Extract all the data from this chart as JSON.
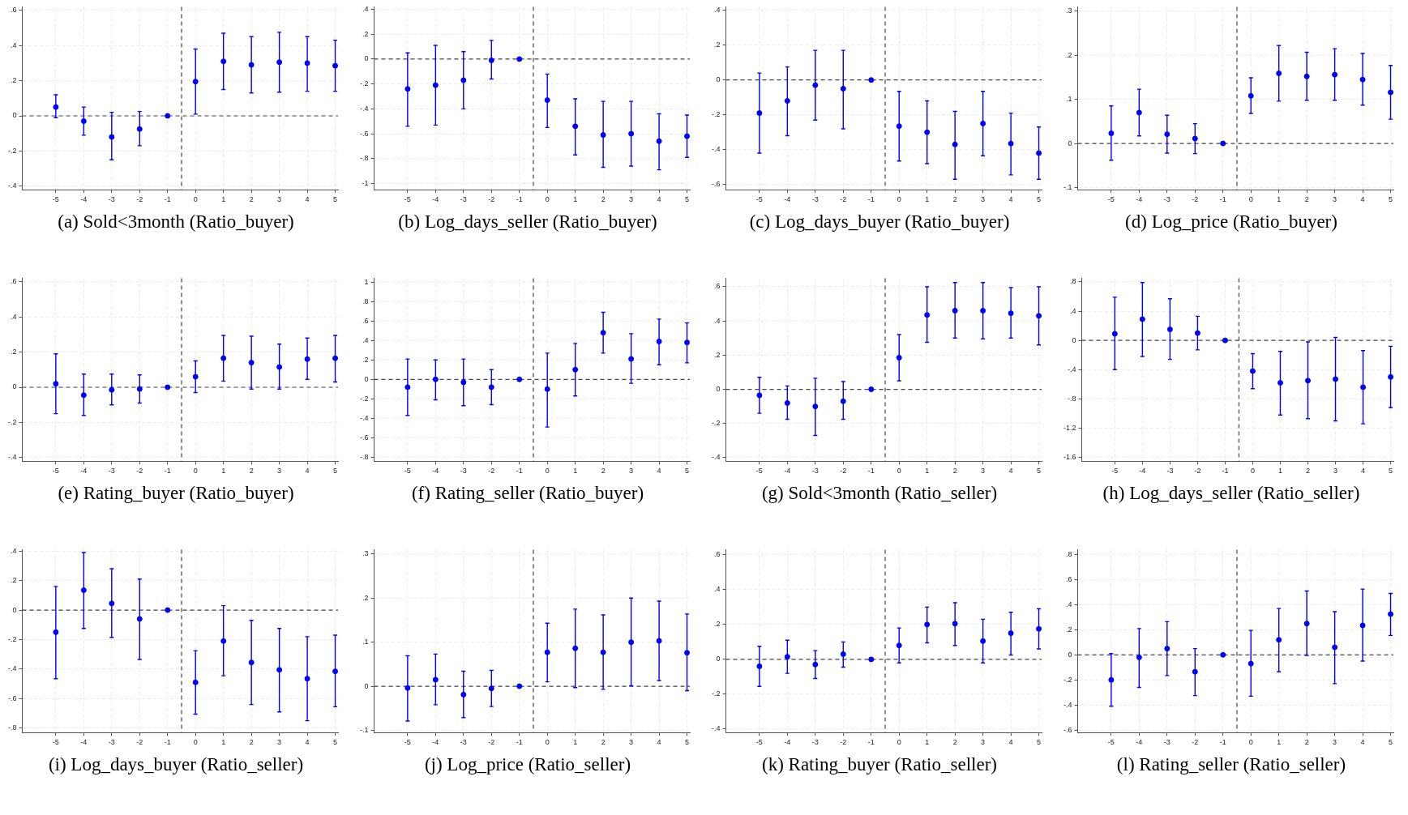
{
  "chart_data": [
    {
      "type": "scatter",
      "title": "(a) Sold<3month (Ratio_buyer)",
      "x": [
        -5,
        -4,
        -3,
        -2,
        -1,
        0,
        1,
        2,
        3,
        4,
        5
      ],
      "xlim": [
        -6.2,
        5.1
      ],
      "xticks": [
        -5,
        -4,
        -3,
        -2,
        -1,
        0,
        1,
        2,
        3,
        4,
        5
      ],
      "ylim": [
        -0.42,
        0.62
      ],
      "yticks": [
        {
          "value": -0.4,
          "label": "-.4"
        },
        {
          "value": -0.2,
          "label": "-.2"
        },
        0,
        {
          "value": 0.2,
          "label": ".2"
        },
        {
          "value": 0.4,
          "label": ".4"
        },
        {
          "value": 0.6,
          "label": ".6"
        }
      ],
      "grid": true,
      "marker": "circle",
      "series": [
        {
          "color": "#0000ff",
          "values": [
            0.05,
            -0.03,
            -0.12,
            -0.075,
            0,
            0.195,
            0.31,
            0.29,
            0.305,
            0.3,
            0.285
          ],
          "errors": [
            [
              -0.01,
              0.12
            ],
            [
              -0.11,
              0.05
            ],
            [
              -0.25,
              0.02
            ],
            [
              -0.17,
              0.025
            ],
            null,
            [
              0.01,
              0.38
            ],
            [
              0.15,
              0.47
            ],
            [
              0.13,
              0.45
            ],
            [
              0.135,
              0.475
            ],
            [
              0.14,
              0.45
            ],
            [
              0.14,
              0.43
            ]
          ]
        }
      ],
      "ref_lines": [
        {
          "axis": "y",
          "value": 0,
          "line_style": "dashed",
          "color": "#444444"
        },
        {
          "axis": "x",
          "value": -0.5,
          "line_style": "dashed",
          "color": "#444444"
        }
      ]
    },
    {
      "type": "scatter",
      "title": "(b) Log_days_seller (Ratio_buyer)",
      "x": [
        -5,
        -4,
        -3,
        -2,
        -1,
        0,
        1,
        2,
        3,
        4,
        5
      ],
      "xlim": [
        -6.2,
        5.1
      ],
      "xticks": [
        -5,
        -4,
        -3,
        -2,
        -1,
        0,
        1,
        2,
        3,
        4,
        5
      ],
      "ylim": [
        -1.05,
        0.42
      ],
      "yticks": [
        -1,
        {
          "value": -0.8,
          "label": "-.8"
        },
        {
          "value": -0.6,
          "label": "-.6"
        },
        {
          "value": -0.4,
          "label": "-.4"
        },
        {
          "value": -0.2,
          "label": "-.2"
        },
        0,
        {
          "value": 0.2,
          "label": ".2"
        },
        {
          "value": 0.4,
          "label": ".4"
        }
      ],
      "grid": true,
      "marker": "circle",
      "series": [
        {
          "color": "#0000ff",
          "values": [
            -0.24,
            -0.21,
            -0.17,
            -0.01,
            0,
            -0.33,
            -0.54,
            -0.61,
            -0.6,
            -0.66,
            -0.62
          ],
          "errors": [
            [
              -0.54,
              0.05
            ],
            [
              -0.53,
              0.11
            ],
            [
              -0.4,
              0.06
            ],
            [
              -0.16,
              0.15
            ],
            null,
            [
              -0.55,
              -0.12
            ],
            [
              -0.77,
              -0.32
            ],
            [
              -0.87,
              -0.34
            ],
            [
              -0.86,
              -0.34
            ],
            [
              -0.89,
              -0.44
            ],
            [
              -0.79,
              -0.45
            ]
          ]
        }
      ],
      "ref_lines": [
        {
          "axis": "y",
          "value": 0,
          "line_style": "dashed",
          "color": "#444444"
        },
        {
          "axis": "x",
          "value": -0.5,
          "line_style": "dashed",
          "color": "#444444"
        }
      ]
    },
    {
      "type": "scatter",
      "title": "(c) Log_days_buyer (Ratio_buyer)",
      "x": [
        -5,
        -4,
        -3,
        -2,
        -1,
        0,
        1,
        2,
        3,
        4,
        5
      ],
      "xlim": [
        -6.2,
        5.1
      ],
      "xticks": [
        -5,
        -4,
        -3,
        -2,
        -1,
        0,
        1,
        2,
        3,
        4,
        5
      ],
      "ylim": [
        -0.63,
        0.42
      ],
      "yticks": [
        {
          "value": -0.6,
          "label": "-.6"
        },
        {
          "value": -0.4,
          "label": "-.4"
        },
        {
          "value": -0.2,
          "label": "-.2"
        },
        0,
        {
          "value": 0.2,
          "label": ".2"
        },
        {
          "value": 0.4,
          "label": ".4"
        }
      ],
      "grid": true,
      "marker": "circle",
      "series": [
        {
          "color": "#0000ff",
          "values": [
            -0.19,
            -0.12,
            -0.03,
            -0.05,
            0,
            -0.265,
            -0.3,
            -0.37,
            -0.25,
            -0.365,
            -0.42
          ],
          "errors": [
            [
              -0.42,
              0.04
            ],
            [
              -0.32,
              0.075
            ],
            [
              -0.23,
              0.17
            ],
            [
              -0.28,
              0.17
            ],
            null,
            [
              -0.465,
              -0.065
            ],
            [
              -0.48,
              -0.12
            ],
            [
              -0.57,
              -0.18
            ],
            [
              -0.435,
              -0.065
            ],
            [
              -0.545,
              -0.19
            ],
            [
              -0.57,
              -0.27
            ]
          ]
        }
      ],
      "ref_lines": [
        {
          "axis": "y",
          "value": 0,
          "line_style": "dashed",
          "color": "#444444"
        },
        {
          "axis": "x",
          "value": -0.5,
          "line_style": "dashed",
          "color": "#444444"
        }
      ]
    },
    {
      "type": "scatter",
      "title": "(d) Log_price (Ratio_buyer)",
      "x": [
        -5,
        -4,
        -3,
        -2,
        -1,
        0,
        1,
        2,
        3,
        4,
        5
      ],
      "xlim": [
        -6.2,
        5.1
      ],
      "xticks": [
        -5,
        -4,
        -3,
        -2,
        -1,
        0,
        1,
        2,
        3,
        4,
        5
      ],
      "ylim": [
        -0.105,
        0.31
      ],
      "yticks": [
        {
          "value": -0.1,
          "label": "-.1"
        },
        0,
        {
          "value": 0.1,
          "label": ".1"
        },
        {
          "value": 0.2,
          "label": ".2"
        },
        {
          "value": 0.3,
          "label": ".3"
        }
      ],
      "grid": true,
      "marker": "circle",
      "series": [
        {
          "color": "#0000ff",
          "values": [
            0.023,
            0.07,
            0.021,
            0.011,
            0,
            0.108,
            0.159,
            0.152,
            0.156,
            0.145,
            0.116
          ],
          "errors": [
            [
              -0.038,
              0.085
            ],
            [
              0.017,
              0.123
            ],
            [
              -0.022,
              0.064
            ],
            [
              -0.023,
              0.045
            ],
            null,
            [
              0.068,
              0.149
            ],
            [
              0.096,
              0.222
            ],
            [
              0.098,
              0.207
            ],
            [
              0.098,
              0.215
            ],
            [
              0.087,
              0.204
            ],
            [
              0.055,
              0.177
            ]
          ]
        }
      ],
      "ref_lines": [
        {
          "axis": "y",
          "value": 0,
          "line_style": "dashed",
          "color": "#444444"
        },
        {
          "axis": "x",
          "value": -0.5,
          "line_style": "dashed",
          "color": "#444444"
        }
      ]
    },
    {
      "type": "scatter",
      "title": "(e) Rating_buyer (Ratio_buyer)",
      "x": [
        -5,
        -4,
        -3,
        -2,
        -1,
        0,
        1,
        2,
        3,
        4,
        5
      ],
      "xlim": [
        -6.2,
        5.1
      ],
      "xticks": [
        -5,
        -4,
        -3,
        -2,
        -1,
        0,
        1,
        2,
        3,
        4,
        5
      ],
      "ylim": [
        -0.42,
        0.62
      ],
      "yticks": [
        {
          "value": -0.4,
          "label": "-.4"
        },
        {
          "value": -0.2,
          "label": "-.2"
        },
        0,
        {
          "value": 0.2,
          "label": ".2"
        },
        {
          "value": 0.4,
          "label": ".4"
        },
        {
          "value": 0.6,
          "label": ".6"
        }
      ],
      "grid": true,
      "marker": "circle",
      "series": [
        {
          "color": "#0000ff",
          "values": [
            0.02,
            -0.045,
            -0.015,
            -0.01,
            0,
            0.06,
            0.165,
            0.14,
            0.115,
            0.16,
            0.165
          ],
          "errors": [
            [
              -0.15,
              0.19
            ],
            [
              -0.16,
              0.075
            ],
            [
              -0.1,
              0.075
            ],
            [
              -0.09,
              0.07
            ],
            null,
            [
              -0.03,
              0.15
            ],
            [
              0.035,
              0.295
            ],
            [
              -0.01,
              0.29
            ],
            [
              -0.01,
              0.245
            ],
            [
              0.045,
              0.28
            ],
            [
              0.03,
              0.295
            ]
          ]
        }
      ],
      "ref_lines": [
        {
          "axis": "y",
          "value": 0,
          "line_style": "dashed",
          "color": "#444444"
        },
        {
          "axis": "x",
          "value": -0.5,
          "line_style": "dashed",
          "color": "#444444"
        }
      ]
    },
    {
      "type": "scatter",
      "title": "(f) Rating_seller (Ratio_buyer)",
      "x": [
        -5,
        -4,
        -3,
        -2,
        -1,
        0,
        1,
        2,
        3,
        4,
        5
      ],
      "xlim": [
        -6.2,
        5.1
      ],
      "xticks": [
        -5,
        -4,
        -3,
        -2,
        -1,
        0,
        1,
        2,
        3,
        4,
        5
      ],
      "ylim": [
        -0.84,
        1.04
      ],
      "yticks": [
        {
          "value": -0.8,
          "label": "-.8"
        },
        {
          "value": -0.6,
          "label": "-.6"
        },
        {
          "value": -0.4,
          "label": "-.4"
        },
        {
          "value": -0.2,
          "label": "-.2"
        },
        0,
        {
          "value": 0.2,
          "label": ".2"
        },
        {
          "value": 0.4,
          "label": ".4"
        },
        {
          "value": 0.6,
          "label": ".6"
        },
        {
          "value": 0.8,
          "label": ".8"
        },
        1
      ],
      "grid": true,
      "marker": "circle",
      "series": [
        {
          "color": "#0000ff",
          "values": [
            -0.08,
            0,
            -0.03,
            -0.08,
            0,
            -0.1,
            0.1,
            0.48,
            0.21,
            0.39,
            0.38
          ],
          "errors": [
            [
              -0.37,
              0.21
            ],
            [
              -0.21,
              0.2
            ],
            [
              -0.27,
              0.21
            ],
            [
              -0.26,
              0.1
            ],
            null,
            [
              -0.49,
              0.27
            ],
            [
              -0.17,
              0.37
            ],
            [
              0.27,
              0.69
            ],
            [
              -0.04,
              0.47
            ],
            [
              0.15,
              0.62
            ],
            [
              0.17,
              0.58
            ]
          ]
        }
      ],
      "ref_lines": [
        {
          "axis": "y",
          "value": 0,
          "line_style": "dashed",
          "color": "#444444"
        },
        {
          "axis": "x",
          "value": -0.5,
          "line_style": "dashed",
          "color": "#444444"
        }
      ]
    },
    {
      "type": "scatter",
      "title": "(g) Sold<3month (Ratio_seller)",
      "x": [
        -5,
        -4,
        -3,
        -2,
        -1,
        0,
        1,
        2,
        3,
        4,
        5
      ],
      "xlim": [
        -6.2,
        5.1
      ],
      "xticks": [
        -5,
        -4,
        -3,
        -2,
        -1,
        0,
        1,
        2,
        3,
        4,
        5
      ],
      "ylim": [
        -0.42,
        0.65
      ],
      "yticks": [
        {
          "value": -0.4,
          "label": "-.4"
        },
        {
          "value": -0.2,
          "label": "-.2"
        },
        0,
        {
          "value": 0.2,
          "label": ".2"
        },
        {
          "value": 0.4,
          "label": ".4"
        },
        {
          "value": 0.6,
          "label": ".6"
        }
      ],
      "grid": true,
      "marker": "circle",
      "series": [
        {
          "color": "#0000ff",
          "values": [
            -0.035,
            -0.08,
            -0.1,
            -0.07,
            0,
            0.185,
            0.435,
            0.46,
            0.46,
            0.445,
            0.43
          ],
          "errors": [
            [
              -0.14,
              0.07
            ],
            [
              -0.175,
              0.02
            ],
            [
              -0.27,
              0.065
            ],
            [
              -0.175,
              0.045
            ],
            null,
            [
              0.05,
              0.32
            ],
            [
              0.275,
              0.6
            ],
            [
              0.3,
              0.625
            ],
            [
              0.295,
              0.625
            ],
            [
              0.3,
              0.595
            ],
            [
              0.26,
              0.6
            ]
          ]
        }
      ],
      "ref_lines": [
        {
          "axis": "y",
          "value": 0,
          "line_style": "dashed",
          "color": "#444444"
        },
        {
          "axis": "x",
          "value": -0.5,
          "line_style": "dashed",
          "color": "#444444"
        }
      ]
    },
    {
      "type": "scatter",
      "title": "(h) Log_days_seller (Ratio_seller)",
      "x": [
        -5,
        -4,
        -3,
        -2,
        -1,
        0,
        1,
        2,
        3,
        4,
        5
      ],
      "xlim": [
        -6.2,
        5.1
      ],
      "xticks": [
        -5,
        -4,
        -3,
        -2,
        -1,
        0,
        1,
        2,
        3,
        4,
        5
      ],
      "ylim": [
        -1.65,
        0.85
      ],
      "yticks": [
        -1.6,
        -1.2,
        {
          "value": -0.8,
          "label": "-.8"
        },
        {
          "value": -0.4,
          "label": "-.4"
        },
        0,
        {
          "value": 0.4,
          "label": ".4"
        },
        {
          "value": 0.8,
          "label": ".8"
        }
      ],
      "grid": true,
      "marker": "circle",
      "series": [
        {
          "color": "#0000ff",
          "values": [
            0.09,
            0.29,
            0.15,
            0.1,
            0,
            -0.42,
            -0.58,
            -0.55,
            -0.53,
            -0.64,
            -0.5
          ],
          "errors": [
            [
              -0.4,
              0.59
            ],
            [
              -0.22,
              0.79
            ],
            [
              -0.26,
              0.57
            ],
            [
              -0.13,
              0.33
            ],
            null,
            [
              -0.66,
              -0.18
            ],
            [
              -1.02,
              -0.15
            ],
            [
              -1.07,
              -0.02
            ],
            [
              -1.1,
              0.04
            ],
            [
              -1.14,
              -0.14
            ],
            [
              -0.92,
              -0.08
            ]
          ]
        }
      ],
      "ref_lines": [
        {
          "axis": "y",
          "value": 0,
          "line_style": "dashed",
          "color": "#444444"
        },
        {
          "axis": "x",
          "value": -0.5,
          "line_style": "dashed",
          "color": "#444444"
        }
      ]
    },
    {
      "type": "scatter",
      "title": "(i) Log_days_buyer (Ratio_seller)",
      "x": [
        -5,
        -4,
        -3,
        -2,
        -1,
        0,
        1,
        2,
        3,
        4,
        5
      ],
      "xlim": [
        -6.2,
        5.1
      ],
      "xticks": [
        -5,
        -4,
        -3,
        -2,
        -1,
        0,
        1,
        2,
        3,
        4,
        5
      ],
      "ylim": [
        -0.83,
        0.41
      ],
      "yticks": [
        {
          "value": -0.8,
          "label": "-.8"
        },
        {
          "value": -0.6,
          "label": "-.6"
        },
        {
          "value": -0.4,
          "label": "-.4"
        },
        {
          "value": -0.2,
          "label": "-.2"
        },
        0,
        {
          "value": 0.2,
          "label": ".2"
        },
        {
          "value": 0.4,
          "label": ".4"
        }
      ],
      "grid": true,
      "marker": "circle",
      "series": [
        {
          "color": "#0000ff",
          "values": [
            -0.15,
            0.135,
            0.045,
            -0.06,
            0,
            -0.49,
            -0.21,
            -0.355,
            -0.405,
            -0.465,
            -0.415
          ],
          "errors": [
            [
              -0.465,
              0.16
            ],
            [
              -0.125,
              0.39
            ],
            [
              -0.185,
              0.28
            ],
            [
              -0.335,
              0.21
            ],
            null,
            [
              -0.705,
              -0.275
            ],
            [
              -0.445,
              0.03
            ],
            [
              -0.64,
              -0.07
            ],
            [
              -0.69,
              -0.125
            ],
            [
              -0.75,
              -0.18
            ],
            [
              -0.655,
              -0.17
            ]
          ]
        }
      ],
      "ref_lines": [
        {
          "axis": "y",
          "value": 0,
          "line_style": "dashed",
          "color": "#444444"
        },
        {
          "axis": "x",
          "value": -0.5,
          "line_style": "dashed",
          "color": "#444444"
        }
      ]
    },
    {
      "type": "scatter",
      "title": "(j) Log_price (Ratio_seller)",
      "x": [
        -5,
        -4,
        -3,
        -2,
        -1,
        0,
        1,
        2,
        3,
        4,
        5
      ],
      "xlim": [
        -6.2,
        5.1
      ],
      "xticks": [
        -5,
        -4,
        -3,
        -2,
        -1,
        0,
        1,
        2,
        3,
        4,
        5
      ],
      "ylim": [
        -0.105,
        0.31
      ],
      "yticks": [
        {
          "value": -0.1,
          "label": "-.1"
        },
        0,
        {
          "value": 0.1,
          "label": ".1"
        },
        {
          "value": 0.2,
          "label": ".2"
        },
        {
          "value": 0.3,
          "label": ".3"
        }
      ],
      "grid": true,
      "marker": "circle",
      "series": [
        {
          "color": "#0000ff",
          "values": [
            -0.004,
            0.015,
            -0.019,
            -0.005,
            0,
            0.077,
            0.086,
            0.077,
            0.1,
            0.103,
            0.076
          ],
          "errors": [
            [
              -0.079,
              0.069
            ],
            [
              -0.042,
              0.073
            ],
            [
              -0.071,
              0.034
            ],
            [
              -0.046,
              0.036
            ],
            null,
            [
              0.01,
              0.143
            ],
            [
              -0.003,
              0.175
            ],
            [
              -0.007,
              0.162
            ],
            [
              0.001,
              0.2
            ],
            [
              0.013,
              0.193
            ],
            [
              -0.01,
              0.164
            ]
          ]
        }
      ],
      "ref_lines": [
        {
          "axis": "y",
          "value": 0,
          "line_style": "dashed",
          "color": "#444444"
        },
        {
          "axis": "x",
          "value": -0.5,
          "line_style": "dashed",
          "color": "#444444"
        }
      ]
    },
    {
      "type": "scatter",
      "title": "(k) Rating_buyer (Ratio_seller)",
      "x": [
        -5,
        -4,
        -3,
        -2,
        -1,
        0,
        1,
        2,
        3,
        4,
        5
      ],
      "xlim": [
        -6.2,
        5.1
      ],
      "xticks": [
        -5,
        -4,
        -3,
        -2,
        -1,
        0,
        1,
        2,
        3,
        4,
        5
      ],
      "ylim": [
        -0.42,
        0.63
      ],
      "yticks": [
        {
          "value": -0.4,
          "label": "-.4"
        },
        {
          "value": -0.2,
          "label": "-.2"
        },
        0,
        {
          "value": 0.2,
          "label": ".2"
        },
        {
          "value": 0.4,
          "label": ".4"
        },
        {
          "value": 0.6,
          "label": ".6"
        }
      ],
      "grid": true,
      "marker": "circle",
      "series": [
        {
          "color": "#0000ff",
          "values": [
            -0.04,
            0.015,
            -0.03,
            0.03,
            0,
            0.08,
            0.2,
            0.205,
            0.105,
            0.15,
            0.175
          ],
          "errors": [
            [
              -0.155,
              0.075
            ],
            [
              -0.08,
              0.11
            ],
            [
              -0.11,
              0.05
            ],
            [
              -0.045,
              0.1
            ],
            null,
            [
              -0.02,
              0.18
            ],
            [
              0.095,
              0.3
            ],
            [
              0.08,
              0.325
            ],
            [
              -0.02,
              0.23
            ],
            [
              0.025,
              0.27
            ],
            [
              0.06,
              0.29
            ]
          ]
        }
      ],
      "ref_lines": [
        {
          "axis": "y",
          "value": 0,
          "line_style": "dashed",
          "color": "#444444"
        },
        {
          "axis": "x",
          "value": -0.5,
          "line_style": "dashed",
          "color": "#444444"
        }
      ]
    },
    {
      "type": "scatter",
      "title": "(l) Rating_seller (Ratio_seller)",
      "x": [
        -5,
        -4,
        -3,
        -2,
        -1,
        0,
        1,
        2,
        3,
        4,
        5
      ],
      "xlim": [
        -6.2,
        5.1
      ],
      "xticks": [
        -5,
        -4,
        -3,
        -2,
        -1,
        0,
        1,
        2,
        3,
        4,
        5
      ],
      "ylim": [
        -0.62,
        0.84
      ],
      "yticks": [
        {
          "value": -0.6,
          "label": "-.6"
        },
        {
          "value": -0.4,
          "label": "-.4"
        },
        {
          "value": -0.2,
          "label": "-.2"
        },
        0,
        {
          "value": 0.2,
          "label": ".2"
        },
        {
          "value": 0.4,
          "label": ".4"
        },
        {
          "value": 0.6,
          "label": ".6"
        },
        {
          "value": 0.8,
          "label": ".8"
        }
      ],
      "grid": true,
      "marker": "circle",
      "series": [
        {
          "color": "#0000ff",
          "values": [
            -0.2,
            -0.02,
            0.05,
            -0.135,
            0,
            -0.07,
            0.12,
            0.25,
            0.06,
            0.235,
            0.325
          ],
          "errors": [
            [
              -0.41,
              0.01
            ],
            [
              -0.26,
              0.21
            ],
            [
              -0.165,
              0.265
            ],
            [
              -0.325,
              0.05
            ],
            null,
            [
              -0.33,
              0.195
            ],
            [
              -0.135,
              0.37
            ],
            [
              -0.005,
              0.51
            ],
            [
              -0.23,
              0.345
            ],
            [
              -0.05,
              0.525
            ],
            [
              0.155,
              0.49
            ]
          ]
        }
      ],
      "ref_lines": [
        {
          "axis": "y",
          "value": 0,
          "line_style": "dashed",
          "color": "#444444"
        },
        {
          "axis": "x",
          "value": -0.5,
          "line_style": "dashed",
          "color": "#444444"
        }
      ]
    }
  ]
}
